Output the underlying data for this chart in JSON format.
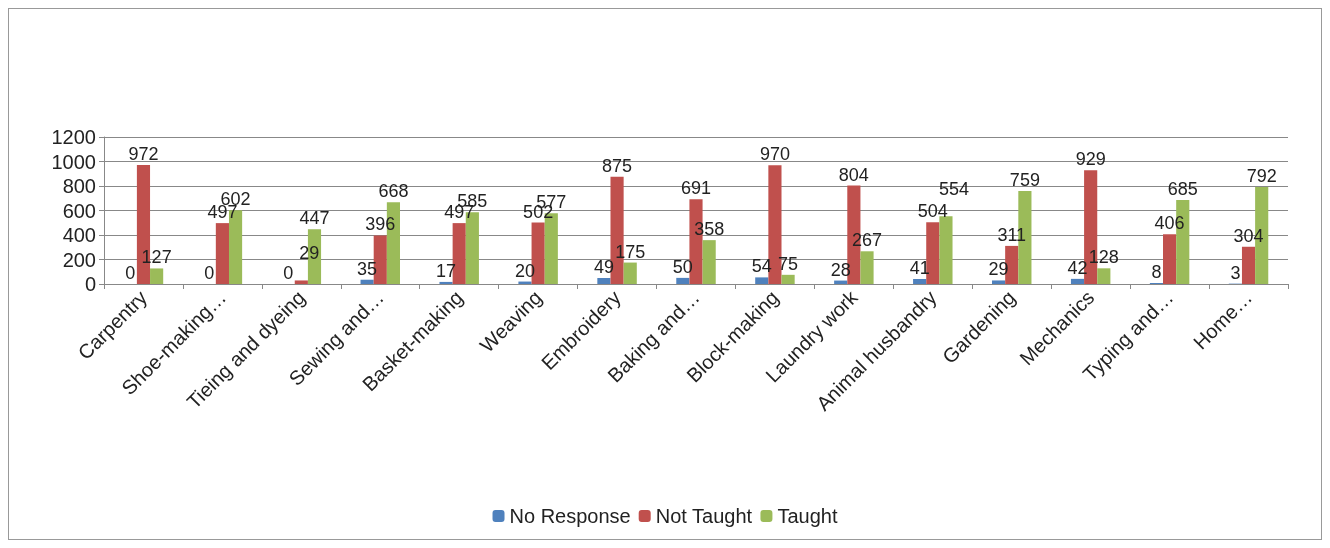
{
  "chart_data": {
    "type": "bar",
    "categories": [
      "Carpentry",
      "Shoe-making…",
      "Tieing and dyeing",
      "Sewing and…",
      "Basket-making",
      "Weaving",
      "Embroidery",
      "Baking and…",
      "Block-making",
      "Laundry work",
      "Animal husbandry",
      "Gardening",
      "Mechanics",
      "Typing and…",
      "Home…"
    ],
    "series": [
      {
        "name": "No Response",
        "color": "#4f81bd",
        "values": [
          0,
          0,
          0,
          35,
          17,
          20,
          49,
          50,
          54,
          28,
          41,
          29,
          42,
          8,
          3
        ]
      },
      {
        "name": "Not Taught",
        "color": "#c0504d",
        "values": [
          972,
          497,
          29,
          396,
          497,
          502,
          875,
          691,
          970,
          804,
          504,
          311,
          929,
          406,
          304
        ]
      },
      {
        "name": "Taught",
        "color": "#9bbb59",
        "values": [
          127,
          602,
          447,
          668,
          585,
          577,
          175,
          358,
          75,
          267,
          554,
          759,
          128,
          685,
          792
        ]
      }
    ],
    "ylim": [
      0,
      1200
    ],
    "yticks": [
      0,
      200,
      400,
      600,
      800,
      1000,
      1200
    ],
    "grid": "y",
    "legend": "bottom",
    "data_labels": true
  }
}
